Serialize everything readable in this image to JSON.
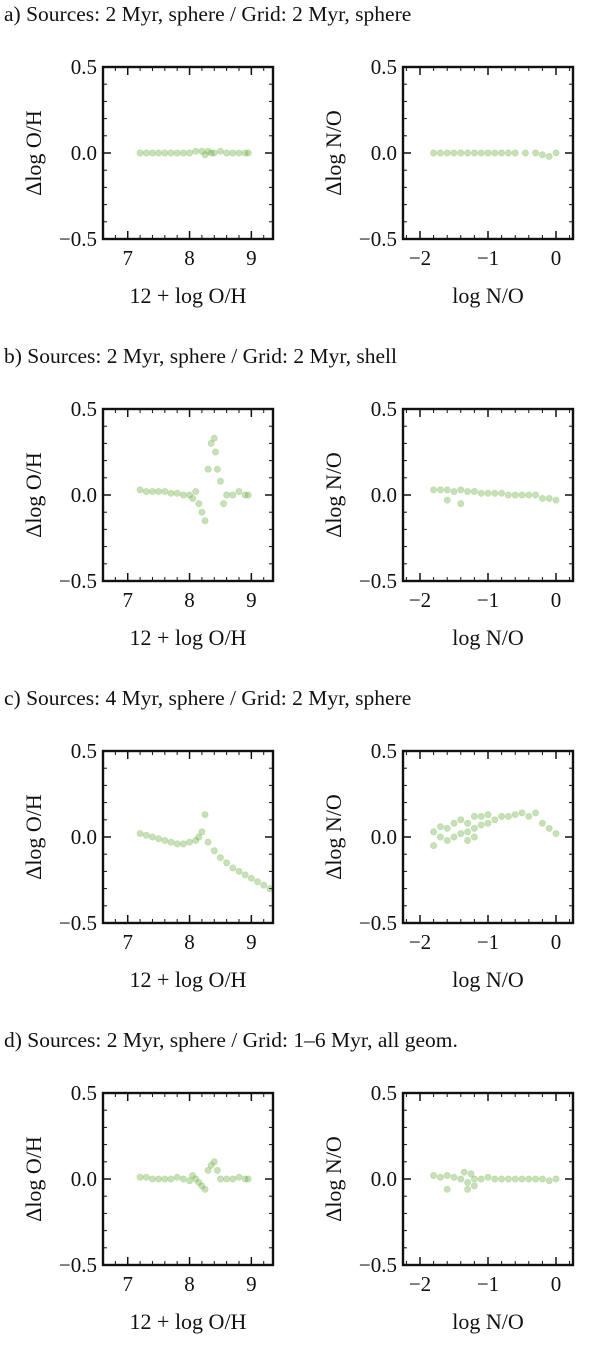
{
  "figure": {
    "marker_color": "#5fa832",
    "x_label_left": "12 + log O/H",
    "x_label_right": "log N/O",
    "y_label_left": "Δlog O/H",
    "y_label_right": "Δlog N/O"
  },
  "panels": [
    {
      "id": "a",
      "title": "a) Sources: 2 Myr, sphere / Grid: 2 Myr, sphere"
    },
    {
      "id": "b",
      "title": "b) Sources: 2 Myr, sphere / Grid: 2 Myr, shell"
    },
    {
      "id": "c",
      "title": "c) Sources: 4 Myr, sphere / Grid: 2 Myr, sphere"
    },
    {
      "id": "d",
      "title": "d) Sources: 2 Myr, sphere / Grid: 1–6 Myr, all geom."
    }
  ],
  "chart_data": [
    {
      "panel": "a-left",
      "type": "scatter",
      "xlabel": "12 + log O/H",
      "ylabel": "Δlog O/H",
      "xlim": [
        6.6,
        9.35
      ],
      "ylim": [
        -0.5,
        0.5
      ],
      "xticks": [
        {
          "v": 7,
          "label": "7"
        },
        {
          "v": 8,
          "label": "8"
        },
        {
          "v": 9,
          "label": "9"
        }
      ],
      "yticks": [
        {
          "v": 0.5,
          "label": "0.5"
        },
        {
          "v": 0.0,
          "label": "0.0"
        },
        {
          "v": -0.5,
          "label": "−0.5"
        }
      ],
      "points": [
        [
          7.2,
          0.0
        ],
        [
          7.3,
          0.0
        ],
        [
          7.4,
          0.0
        ],
        [
          7.5,
          0.0
        ],
        [
          7.6,
          0.0
        ],
        [
          7.7,
          0.0
        ],
        [
          7.8,
          0.0
        ],
        [
          7.9,
          0.0
        ],
        [
          8.0,
          0.0
        ],
        [
          8.1,
          0.01
        ],
        [
          8.2,
          0.01
        ],
        [
          8.25,
          -0.01
        ],
        [
          8.3,
          0.01
        ],
        [
          8.35,
          0.0
        ],
        [
          8.4,
          0.0
        ],
        [
          8.5,
          0.01
        ],
        [
          8.6,
          0.0
        ],
        [
          8.7,
          0.0
        ],
        [
          8.8,
          0.0
        ],
        [
          8.9,
          0.0
        ],
        [
          8.95,
          0.0
        ]
      ]
    },
    {
      "panel": "a-right",
      "type": "scatter",
      "xlabel": "log N/O",
      "ylabel": "Δlog N/O",
      "xlim": [
        -2.25,
        0.25
      ],
      "ylim": [
        -0.5,
        0.5
      ],
      "xticks": [
        {
          "v": -2,
          "label": "−2"
        },
        {
          "v": -1,
          "label": "−1"
        },
        {
          "v": 0,
          "label": "0"
        }
      ],
      "yticks": [
        {
          "v": 0.5,
          "label": "0.5"
        },
        {
          "v": 0.0,
          "label": "0.0"
        },
        {
          "v": -0.5,
          "label": "−0.5"
        }
      ],
      "points": [
        [
          -1.8,
          0.0
        ],
        [
          -1.7,
          0.0
        ],
        [
          -1.6,
          0.0
        ],
        [
          -1.5,
          0.0
        ],
        [
          -1.4,
          0.0
        ],
        [
          -1.3,
          0.0
        ],
        [
          -1.2,
          0.0
        ],
        [
          -1.1,
          0.0
        ],
        [
          -1.0,
          0.0
        ],
        [
          -0.9,
          0.0
        ],
        [
          -0.8,
          0.0
        ],
        [
          -0.7,
          0.0
        ],
        [
          -0.6,
          0.0
        ],
        [
          -0.45,
          0.0
        ],
        [
          -0.3,
          0.0
        ],
        [
          -0.2,
          -0.01
        ],
        [
          -0.1,
          -0.02
        ],
        [
          0.0,
          0.0
        ]
      ]
    },
    {
      "panel": "b-left",
      "type": "scatter",
      "xlabel": "12 + log O/H",
      "ylabel": "Δlog O/H",
      "xlim": [
        6.6,
        9.35
      ],
      "ylim": [
        -0.5,
        0.5
      ],
      "xticks": [
        {
          "v": 7,
          "label": "7"
        },
        {
          "v": 8,
          "label": "8"
        },
        {
          "v": 9,
          "label": "9"
        }
      ],
      "yticks": [
        {
          "v": 0.5,
          "label": "0.5"
        },
        {
          "v": 0.0,
          "label": "0.0"
        },
        {
          "v": -0.5,
          "label": "−0.5"
        }
      ],
      "points": [
        [
          7.2,
          0.03
        ],
        [
          7.3,
          0.02
        ],
        [
          7.4,
          0.02
        ],
        [
          7.5,
          0.02
        ],
        [
          7.6,
          0.02
        ],
        [
          7.7,
          0.01
        ],
        [
          7.8,
          0.01
        ],
        [
          7.9,
          0.0
        ],
        [
          8.0,
          0.0
        ],
        [
          8.05,
          -0.02
        ],
        [
          8.1,
          0.02
        ],
        [
          8.15,
          -0.05
        ],
        [
          8.2,
          -0.1
        ],
        [
          8.25,
          -0.15
        ],
        [
          8.3,
          0.15
        ],
        [
          8.35,
          0.3
        ],
        [
          8.4,
          0.33
        ],
        [
          8.42,
          0.25
        ],
        [
          8.45,
          0.15
        ],
        [
          8.5,
          0.08
        ],
        [
          8.55,
          -0.05
        ],
        [
          8.6,
          0.0
        ],
        [
          8.7,
          0.0
        ],
        [
          8.8,
          0.02
        ],
        [
          8.9,
          0.0
        ],
        [
          8.95,
          0.0
        ]
      ]
    },
    {
      "panel": "b-right",
      "type": "scatter",
      "xlabel": "log N/O",
      "ylabel": "Δlog N/O",
      "xlim": [
        -2.25,
        0.25
      ],
      "ylim": [
        -0.5,
        0.5
      ],
      "xticks": [
        {
          "v": -2,
          "label": "−2"
        },
        {
          "v": -1,
          "label": "−1"
        },
        {
          "v": 0,
          "label": "0"
        }
      ],
      "yticks": [
        {
          "v": 0.5,
          "label": "0.5"
        },
        {
          "v": 0.0,
          "label": "0.0"
        },
        {
          "v": -0.5,
          "label": "−0.5"
        }
      ],
      "points": [
        [
          -1.8,
          0.03
        ],
        [
          -1.7,
          0.03
        ],
        [
          -1.6,
          0.03
        ],
        [
          -1.5,
          0.02
        ],
        [
          -1.4,
          0.03
        ],
        [
          -1.3,
          0.02
        ],
        [
          -1.2,
          0.02
        ],
        [
          -1.1,
          0.01
        ],
        [
          -1.0,
          0.01
        ],
        [
          -0.9,
          0.01
        ],
        [
          -0.8,
          0.01
        ],
        [
          -0.7,
          0.0
        ],
        [
          -0.6,
          0.0
        ],
        [
          -0.5,
          0.0
        ],
        [
          -0.4,
          0.0
        ],
        [
          -0.3,
          0.0
        ],
        [
          -0.2,
          -0.02
        ],
        [
          -0.1,
          -0.02
        ],
        [
          0.0,
          -0.03
        ],
        [
          -1.6,
          -0.03
        ],
        [
          -1.4,
          -0.05
        ]
      ]
    },
    {
      "panel": "c-left",
      "type": "scatter",
      "xlabel": "12 + log O/H",
      "ylabel": "Δlog O/H",
      "xlim": [
        6.6,
        9.35
      ],
      "ylim": [
        -0.5,
        0.5
      ],
      "xticks": [
        {
          "v": 7,
          "label": "7"
        },
        {
          "v": 8,
          "label": "8"
        },
        {
          "v": 9,
          "label": "9"
        }
      ],
      "yticks": [
        {
          "v": 0.5,
          "label": "0.5"
        },
        {
          "v": 0.0,
          "label": "0.0"
        },
        {
          "v": -0.5,
          "label": "−0.5"
        }
      ],
      "points": [
        [
          7.2,
          0.02
        ],
        [
          7.3,
          0.01
        ],
        [
          7.4,
          0.0
        ],
        [
          7.5,
          -0.01
        ],
        [
          7.6,
          -0.02
        ],
        [
          7.7,
          -0.03
        ],
        [
          7.8,
          -0.04
        ],
        [
          7.9,
          -0.04
        ],
        [
          8.0,
          -0.03
        ],
        [
          8.1,
          -0.02
        ],
        [
          8.15,
          0.0
        ],
        [
          8.2,
          0.03
        ],
        [
          8.25,
          0.13
        ],
        [
          8.3,
          -0.03
        ],
        [
          8.4,
          -0.08
        ],
        [
          8.5,
          -0.12
        ],
        [
          8.6,
          -0.15
        ],
        [
          8.7,
          -0.18
        ],
        [
          8.8,
          -0.2
        ],
        [
          8.9,
          -0.22
        ],
        [
          9.0,
          -0.24
        ],
        [
          9.1,
          -0.26
        ],
        [
          9.2,
          -0.28
        ],
        [
          9.3,
          -0.3
        ]
      ]
    },
    {
      "panel": "c-right",
      "type": "scatter",
      "xlabel": "log N/O",
      "ylabel": "Δlog N/O",
      "xlim": [
        -2.25,
        0.25
      ],
      "ylim": [
        -0.5,
        0.5
      ],
      "xticks": [
        {
          "v": -2,
          "label": "−2"
        },
        {
          "v": -1,
          "label": "−1"
        },
        {
          "v": 0,
          "label": "0"
        }
      ],
      "yticks": [
        {
          "v": 0.5,
          "label": "0.5"
        },
        {
          "v": 0.0,
          "label": "0.0"
        },
        {
          "v": -0.5,
          "label": "−0.5"
        }
      ],
      "points": [
        [
          -1.8,
          -0.05
        ],
        [
          -1.8,
          0.03
        ],
        [
          -1.7,
          0.0
        ],
        [
          -1.7,
          0.06
        ],
        [
          -1.6,
          -0.02
        ],
        [
          -1.6,
          0.05
        ],
        [
          -1.5,
          0.0
        ],
        [
          -1.5,
          0.08
        ],
        [
          -1.4,
          0.02
        ],
        [
          -1.4,
          0.1
        ],
        [
          -1.3,
          0.03
        ],
        [
          -1.3,
          0.08
        ],
        [
          -1.2,
          0.05
        ],
        [
          -1.2,
          0.12
        ],
        [
          -1.1,
          0.07
        ],
        [
          -1.1,
          0.12
        ],
        [
          -1.0,
          0.08
        ],
        [
          -1.0,
          0.13
        ],
        [
          -0.9,
          0.1
        ],
        [
          -0.8,
          0.12
        ],
        [
          -0.7,
          0.12
        ],
        [
          -0.6,
          0.13
        ],
        [
          -0.5,
          0.14
        ],
        [
          -0.4,
          0.12
        ],
        [
          -0.3,
          0.14
        ],
        [
          -0.2,
          0.08
        ],
        [
          -0.1,
          0.05
        ],
        [
          0.0,
          0.02
        ],
        [
          -1.3,
          -0.02
        ],
        [
          -1.2,
          0.0
        ]
      ]
    },
    {
      "panel": "d-left",
      "type": "scatter",
      "xlabel": "12 + log O/H",
      "ylabel": "Δlog O/H",
      "xlim": [
        6.6,
        9.35
      ],
      "ylim": [
        -0.5,
        0.5
      ],
      "xticks": [
        {
          "v": 7,
          "label": "7"
        },
        {
          "v": 8,
          "label": "8"
        },
        {
          "v": 9,
          "label": "9"
        }
      ],
      "yticks": [
        {
          "v": 0.5,
          "label": "0.5"
        },
        {
          "v": 0.0,
          "label": "0.0"
        },
        {
          "v": -0.5,
          "label": "−0.5"
        }
      ],
      "points": [
        [
          7.2,
          0.01
        ],
        [
          7.3,
          0.01
        ],
        [
          7.4,
          0.0
        ],
        [
          7.5,
          0.0
        ],
        [
          7.6,
          0.0
        ],
        [
          7.7,
          0.0
        ],
        [
          7.8,
          0.01
        ],
        [
          7.9,
          0.0
        ],
        [
          8.0,
          -0.01
        ],
        [
          8.05,
          0.02
        ],
        [
          8.1,
          0.0
        ],
        [
          8.15,
          -0.02
        ],
        [
          8.2,
          -0.04
        ],
        [
          8.25,
          -0.06
        ],
        [
          8.3,
          0.05
        ],
        [
          8.35,
          0.08
        ],
        [
          8.4,
          0.1
        ],
        [
          8.45,
          0.05
        ],
        [
          8.5,
          0.0
        ],
        [
          8.6,
          0.0
        ],
        [
          8.7,
          0.0
        ],
        [
          8.8,
          0.01
        ],
        [
          8.9,
          0.0
        ],
        [
          8.95,
          0.0
        ]
      ]
    },
    {
      "panel": "d-right",
      "type": "scatter",
      "xlabel": "log N/O",
      "ylabel": "Δlog N/O",
      "xlim": [
        -2.25,
        0.25
      ],
      "ylim": [
        -0.5,
        0.5
      ],
      "xticks": [
        {
          "v": -2,
          "label": "−2"
        },
        {
          "v": -1,
          "label": "−1"
        },
        {
          "v": 0,
          "label": "0"
        }
      ],
      "yticks": [
        {
          "v": 0.5,
          "label": "0.5"
        },
        {
          "v": 0.0,
          "label": "0.0"
        },
        {
          "v": -0.5,
          "label": "−0.5"
        }
      ],
      "points": [
        [
          -1.8,
          0.02
        ],
        [
          -1.7,
          0.01
        ],
        [
          -1.6,
          0.02
        ],
        [
          -1.5,
          0.01
        ],
        [
          -1.4,
          0.0
        ],
        [
          -1.35,
          0.04
        ],
        [
          -1.3,
          -0.02
        ],
        [
          -1.25,
          0.03
        ],
        [
          -1.2,
          0.0
        ],
        [
          -1.1,
          0.0
        ],
        [
          -1.0,
          0.01
        ],
        [
          -0.9,
          0.0
        ],
        [
          -0.8,
          0.0
        ],
        [
          -0.7,
          0.0
        ],
        [
          -0.6,
          0.0
        ],
        [
          -0.5,
          0.0
        ],
        [
          -0.4,
          0.0
        ],
        [
          -0.3,
          0.0
        ],
        [
          -0.2,
          0.0
        ],
        [
          -0.1,
          -0.01
        ],
        [
          0.0,
          0.0
        ],
        [
          -1.6,
          -0.06
        ],
        [
          -1.3,
          -0.06
        ],
        [
          -1.2,
          -0.04
        ]
      ]
    }
  ]
}
